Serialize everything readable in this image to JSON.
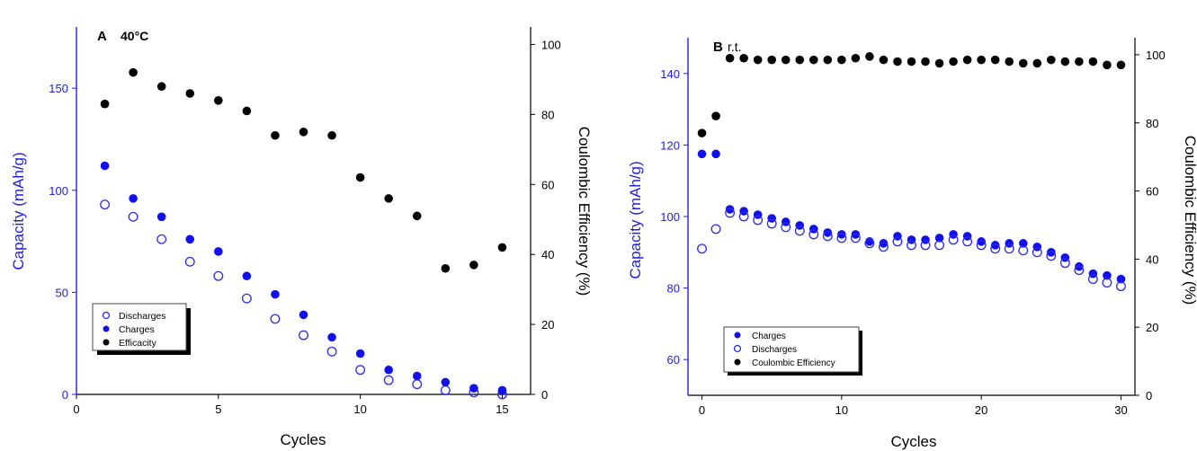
{
  "chart_data": [
    {
      "type": "scatter",
      "panel_label": "A",
      "panel_title": "40°C",
      "xlabel": "Cycles",
      "ylabel_left": "Capacity (mAh/g)",
      "ylabel_right": "Coulombic Efficiency (%)",
      "xlim": [
        0,
        16
      ],
      "ylim_left": [
        0,
        180
      ],
      "ylim_right": [
        0,
        105
      ],
      "xticks": [
        0,
        5,
        10,
        15
      ],
      "yticks_left": [
        0,
        50,
        100,
        150
      ],
      "yticks_right": [
        0,
        20,
        40,
        60,
        80,
        100
      ],
      "grid": false,
      "legend_position": "bottom-left",
      "colors": {
        "left_axis": "#2020e0",
        "charges": "#1010ee",
        "discharges": "#2a2af0",
        "efficiency": "#000000"
      },
      "series": [
        {
          "name": "Discharges",
          "axis": "left",
          "marker": "hollow-circle",
          "x": [
            1,
            2,
            3,
            4,
            5,
            6,
            7,
            8,
            9,
            10,
            11,
            12,
            13,
            14,
            15
          ],
          "values": [
            93,
            87,
            76,
            65,
            58,
            47,
            37,
            29,
            21,
            12,
            7,
            5,
            2,
            1,
            0
          ]
        },
        {
          "name": "Charges",
          "axis": "left",
          "marker": "filled-circle",
          "x": [
            1,
            2,
            3,
            4,
            5,
            6,
            7,
            8,
            9,
            10,
            11,
            12,
            13,
            14,
            15
          ],
          "values": [
            112,
            96,
            87,
            76,
            70,
            58,
            49,
            39,
            28,
            20,
            12,
            9,
            6,
            3,
            2
          ]
        },
        {
          "name": "Efficacity",
          "axis": "right",
          "marker": "filled-circle",
          "x": [
            1,
            2,
            3,
            4,
            5,
            6,
            7,
            8,
            9,
            10,
            11,
            12,
            13,
            14,
            15
          ],
          "values": [
            83,
            92,
            88,
            86,
            84,
            81,
            74,
            75,
            74,
            62,
            56,
            51,
            36,
            37,
            42
          ]
        }
      ]
    },
    {
      "type": "scatter",
      "panel_label": "B",
      "panel_title": "r.t.",
      "xlabel": "Cycles",
      "ylabel_left": "Capacity (mAh/g)",
      "ylabel_right": "Coulombic Efficiency (%)",
      "xlim": [
        -1,
        31
      ],
      "ylim_left": [
        50,
        150
      ],
      "ylim_right": [
        0,
        105
      ],
      "xticks": [
        0,
        10,
        20,
        30
      ],
      "yticks_left": [
        60,
        80,
        100,
        120,
        140
      ],
      "yticks_right": [
        0,
        20,
        40,
        60,
        80,
        100
      ],
      "grid": false,
      "legend_position": "bottom-left",
      "colors": {
        "left_axis": "#2020e0",
        "charges": "#1010ee",
        "discharges": "#2a2af0",
        "efficiency": "#000000"
      },
      "series": [
        {
          "name": "Charges",
          "axis": "left",
          "marker": "filled-circle",
          "x": [
            0,
            1,
            2,
            3,
            4,
            5,
            6,
            7,
            8,
            9,
            10,
            11,
            12,
            13,
            14,
            15,
            16,
            17,
            18,
            19,
            20,
            21,
            22,
            23,
            24,
            25,
            26,
            27,
            28,
            29,
            30
          ],
          "values": [
            117.5,
            117.5,
            102,
            101.5,
            100.5,
            99.5,
            98.5,
            97.5,
            96.5,
            95.5,
            95,
            95,
            93,
            92.5,
            94.5,
            93.5,
            93.5,
            94,
            95,
            94.5,
            93,
            92,
            92.5,
            92.5,
            91.5,
            90,
            88.5,
            86,
            84,
            83.5,
            82.5
          ]
        },
        {
          "name": "Discharges",
          "axis": "left",
          "marker": "hollow-circle",
          "x": [
            0,
            1,
            2,
            3,
            4,
            5,
            6,
            7,
            8,
            9,
            10,
            11,
            12,
            13,
            14,
            15,
            16,
            17,
            18,
            19,
            20,
            21,
            22,
            23,
            24,
            25,
            26,
            27,
            28,
            29,
            30
          ],
          "values": [
            91,
            96.5,
            101,
            100,
            99,
            98,
            97,
            96,
            95,
            94.5,
            94,
            94,
            92.5,
            91.5,
            93,
            92,
            92,
            92,
            93.5,
            93,
            92,
            91,
            91,
            90.5,
            90,
            89,
            87,
            85,
            82.5,
            81.5,
            80.5
          ]
        },
        {
          "name": "Coulombic Efficiency",
          "axis": "right",
          "marker": "filled-circle",
          "x": [
            0,
            1,
            2,
            3,
            4,
            5,
            6,
            7,
            8,
            9,
            10,
            11,
            12,
            13,
            14,
            15,
            16,
            17,
            18,
            19,
            20,
            21,
            22,
            23,
            24,
            25,
            26,
            27,
            28,
            29,
            30
          ],
          "values": [
            77,
            82,
            99,
            99,
            98.5,
            98.5,
            98.5,
            98.5,
            98.5,
            98.5,
            98.5,
            99,
            99.5,
            98.5,
            98,
            98,
            98,
            97.5,
            98,
            98.5,
            98.5,
            98.5,
            98,
            97.5,
            97.5,
            98.5,
            98,
            98,
            98,
            97,
            97
          ]
        }
      ]
    }
  ]
}
